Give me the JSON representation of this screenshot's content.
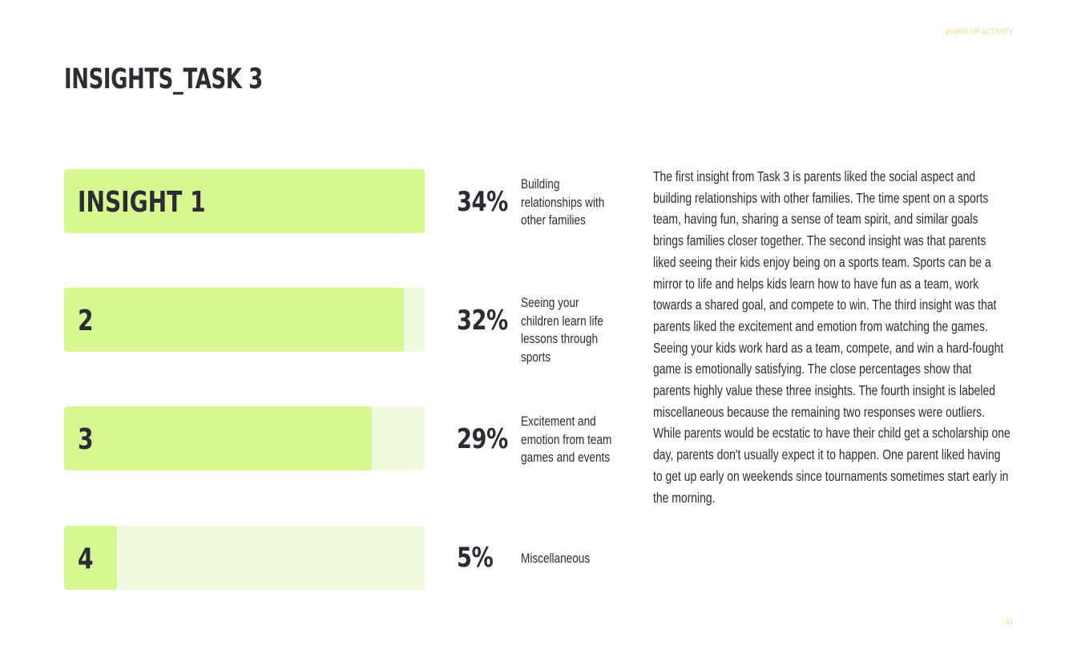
{
  "header": {
    "section_label": "WARM-UP ACTIVITY",
    "title": "INSIGHTS_TASK 3"
  },
  "insights": [
    {
      "label": "INSIGHT 1",
      "percent": 34,
      "percent_text": "34%",
      "description": "Building relationships with other families"
    },
    {
      "label": "2",
      "percent": 32,
      "percent_text": "32%",
      "description": "Seeing your children learn life lessons through sports"
    },
    {
      "label": "3",
      "percent": 29,
      "percent_text": "29%",
      "description": "Excitement and emotion from team games and events"
    },
    {
      "label": "4",
      "percent": 5,
      "percent_text": "5%",
      "description": "Miscellaneous"
    }
  ],
  "body_text": "The first insight from Task 3 is parents liked the social aspect and building relationships with other families. The time spent on a sports team, having fun, sharing a sense of team spirit, and similar goals brings families closer together. The second insight was that parents liked seeing their kids enjoy being on a sports team. Sports can be a mirror to life and helps kids learn how to have fun as a team, work towards a shared goal, and compete to win. The third insight was that parents liked the excitement and emotion from watching the games. Seeing your kids work hard as a team, compete, and win a hard-fought game is emotionally satisfying. The close percentages show that parents highly value these three insights. The fourth insight is labeled miscellaneous because the remaining two responses were outliers. While parents would be ecstatic to have their child get a scholarship one day, parents don't usually expect it to happen. One parent liked having to get up early on weekends since tournaments sometimes start early in the morning.",
  "footer": {
    "page_number": "41"
  },
  "colors": {
    "bar_fill": "#d8f791",
    "bar_track": "#f1fadf",
    "text": "#2a2d33",
    "accent": "#f2dc8c"
  }
}
